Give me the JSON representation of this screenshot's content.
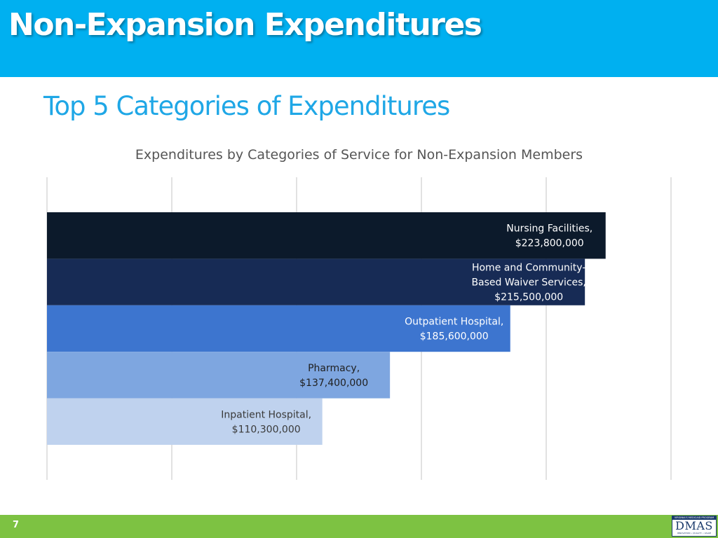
{
  "slide": {
    "title": "Non-Expansion Expenditures",
    "subtitle": "Top 5 Categories of Expenditures",
    "page_number": "7",
    "colors": {
      "header": "#00b0f0",
      "subtitle": "#1fa7e6",
      "footer": "#7dc242"
    }
  },
  "logo": {
    "top_text": "VIRGINIA'S MEDICAID PROGRAM",
    "mark": "DMAS",
    "tagline": "INNOVATION • QUALITY • VALUE"
  },
  "chart_data": {
    "type": "bar",
    "orientation": "horizontal",
    "title": "Expenditures by Categories of Service for Non-Expansion Members",
    "categories": [
      "Nursing Facilities",
      "Home and Community-Based Waiver Services",
      "Outpatient Hospital",
      "Pharmacy",
      "Inpatient Hospital"
    ],
    "values": [
      223800000,
      215500000,
      185600000,
      137400000,
      110300000
    ],
    "data_labels": [
      [
        "Nursing Facilities,",
        "$223,800,000"
      ],
      [
        "Home and Community-",
        "Based Waiver Services,",
        "$215,500,000"
      ],
      [
        "Outpatient Hospital,",
        "$185,600,000"
      ],
      [
        "Pharmacy,",
        "$137,400,000"
      ],
      [
        "Inpatient Hospital,",
        "$110,300,000"
      ]
    ],
    "colors": [
      "#0c1a2b",
      "#172b55",
      "#3d75cf",
      "#7ea6e0",
      "#bfd2ee"
    ],
    "label_colors": [
      "#ffffff",
      "#ffffff",
      "#ffffff",
      "#1f1f1f",
      "#3a3a3a"
    ],
    "xlim": [
      0,
      250000000
    ],
    "x_gridlines": true,
    "x_tick_labels_shown": false
  }
}
